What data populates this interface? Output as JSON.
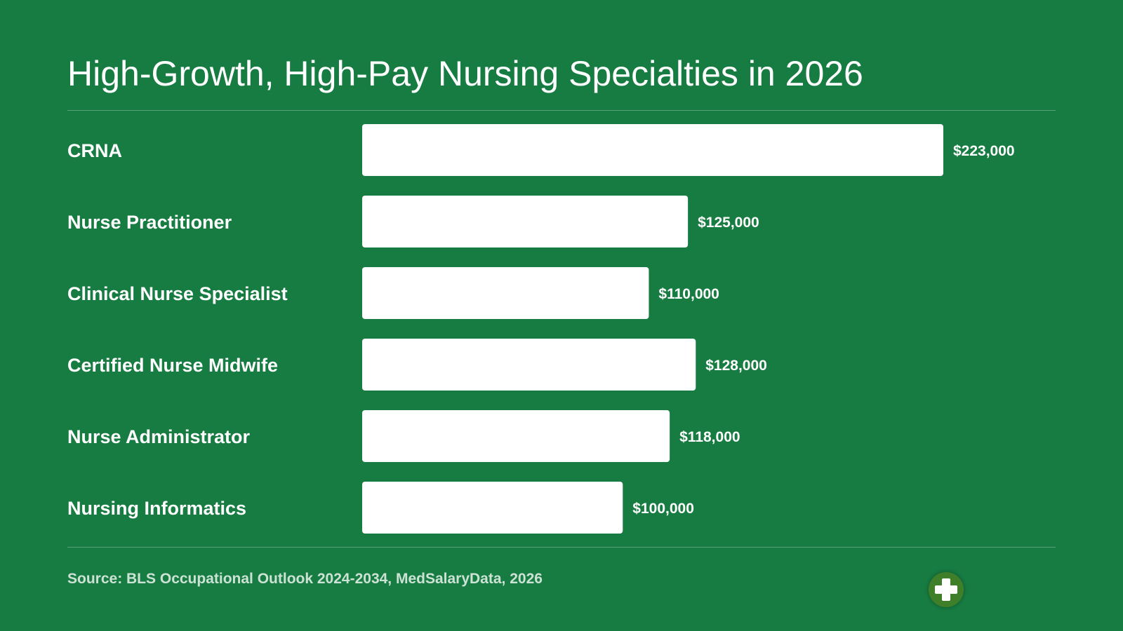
{
  "title": "High-Growth, High-Pay Nursing Specialties in 2026",
  "source": "Source: BLS Occupational Outlook 2024-2034, MedSalaryData, 2026",
  "badge_icon": "medical-cross-icon",
  "colors": {
    "background": "#177c42",
    "bar": "#ffffff",
    "text": "#ffffff",
    "badge": "#3f7f29"
  },
  "chart_data": {
    "type": "bar",
    "orientation": "horizontal",
    "categories": [
      "CRNA",
      "Nurse Practitioner",
      "Clinical Nurse Specialist",
      "Certified Nurse Midwife",
      "Nurse Administrator",
      "Nursing Informatics"
    ],
    "values": [
      223000,
      125000,
      110000,
      128000,
      118000,
      100000
    ],
    "value_labels": [
      "$223,000",
      "$125,000",
      "$110,000",
      "$128,000",
      "$118,000",
      "$100,000"
    ],
    "title": "High-Growth, High-Pay Nursing Specialties in 2026",
    "xlabel": "",
    "ylabel": "",
    "xlim": [
      0,
      223000
    ],
    "grid": false,
    "legend": "none"
  }
}
